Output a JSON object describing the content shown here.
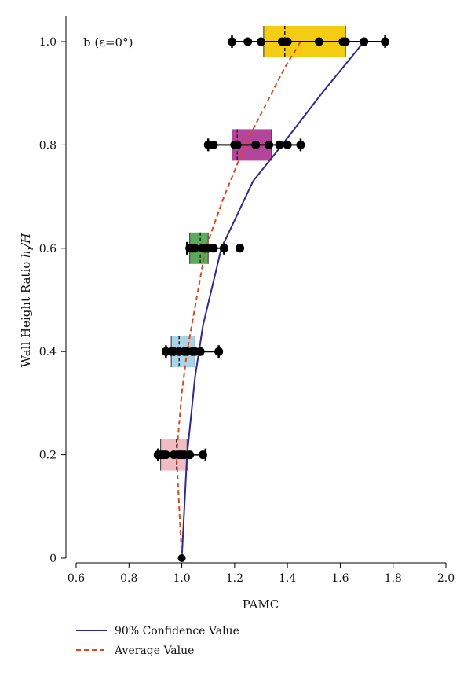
{
  "chart_data": {
    "type": "scatter",
    "panel_label": "b (ε=0°)",
    "xlabel": "PAMC",
    "ylabel_main": "Wall Height Ratio ",
    "ylabel_italic": "h",
    "ylabel_sub": "i",
    "ylabel_tail": "/H",
    "xlim": [
      0.6,
      2.0
    ],
    "ylim": [
      0,
      1.0
    ],
    "x_ticks": [
      0.6,
      0.8,
      1.0,
      1.2,
      1.4,
      1.6,
      1.8,
      2.0
    ],
    "x_tick_labels": [
      "0.6",
      "0.8",
      "1.0",
      "1.2",
      "1.4",
      "1.6",
      "1.8",
      "2.0"
    ],
    "y_ticks": [
      0,
      0.2,
      0.4,
      0.6,
      0.8,
      1.0
    ],
    "y_tick_labels": [
      "0",
      "0.2",
      "0.4",
      "0.6",
      "0.8",
      "1.0"
    ],
    "groups": [
      {
        "y": 0.2,
        "color": "#f2bcc4",
        "box": [
          0.92,
          1.02
        ],
        "median": 0.98,
        "whisker": [
          0.91,
          1.09
        ],
        "points": [
          0.91,
          0.92,
          0.93,
          0.94,
          0.97,
          0.99,
          1.0,
          1.01,
          1.03,
          1.08
        ]
      },
      {
        "y": 0.4,
        "color": "#a8d4e6",
        "box": [
          0.96,
          1.05
        ],
        "median": 0.99,
        "whisker": [
          0.94,
          1.14
        ],
        "points": [
          0.94,
          0.96,
          0.97,
          0.99,
          1.01,
          1.02,
          1.04,
          1.05,
          1.07,
          1.14
        ]
      },
      {
        "y": 0.6,
        "color": "#5cab5c",
        "box": [
          1.03,
          1.1
        ],
        "median": 1.07,
        "whisker": [
          1.02,
          1.16
        ],
        "points": [
          1.03,
          1.04,
          1.05,
          1.08,
          1.09,
          1.1,
          1.12,
          1.16,
          1.22
        ]
      },
      {
        "y": 0.8,
        "color": "#b4459b",
        "box": [
          1.19,
          1.34
        ],
        "median": 1.21,
        "whisker": [
          1.1,
          1.45
        ],
        "points": [
          1.1,
          1.12,
          1.2,
          1.21,
          1.28,
          1.33,
          1.37,
          1.4,
          1.45
        ]
      },
      {
        "y": 1.0,
        "color": "#f5cc14",
        "box": [
          1.31,
          1.62
        ],
        "median": 1.39,
        "whisker": [
          1.19,
          1.77
        ],
        "points": [
          1.19,
          1.25,
          1.3,
          1.38,
          1.4,
          1.52,
          1.61,
          1.62,
          1.69,
          1.77
        ]
      }
    ],
    "base_point": {
      "x": 1.0,
      "y": 0
    },
    "series": [
      {
        "name": "90% Confidence Value",
        "color": "#2e2a8f",
        "style": "solid",
        "x": [
          1.0,
          1.02,
          1.05,
          1.08,
          1.15,
          1.27,
          1.38,
          1.53,
          1.69
        ],
        "y": [
          0,
          0.2,
          0.35,
          0.45,
          0.6,
          0.73,
          0.8,
          0.9,
          1.0
        ]
      },
      {
        "name": "Average Value",
        "color": "#d84a1b",
        "style": "dashed",
        "x": [
          1.0,
          0.98,
          1.0,
          1.02,
          1.09,
          1.16,
          1.24,
          1.32,
          1.39,
          1.45
        ],
        "y": [
          0,
          0.2,
          0.32,
          0.4,
          0.6,
          0.7,
          0.8,
          0.88,
          0.95,
          1.0
        ]
      }
    ],
    "legend_placement": "bottom-left",
    "grid": false
  }
}
